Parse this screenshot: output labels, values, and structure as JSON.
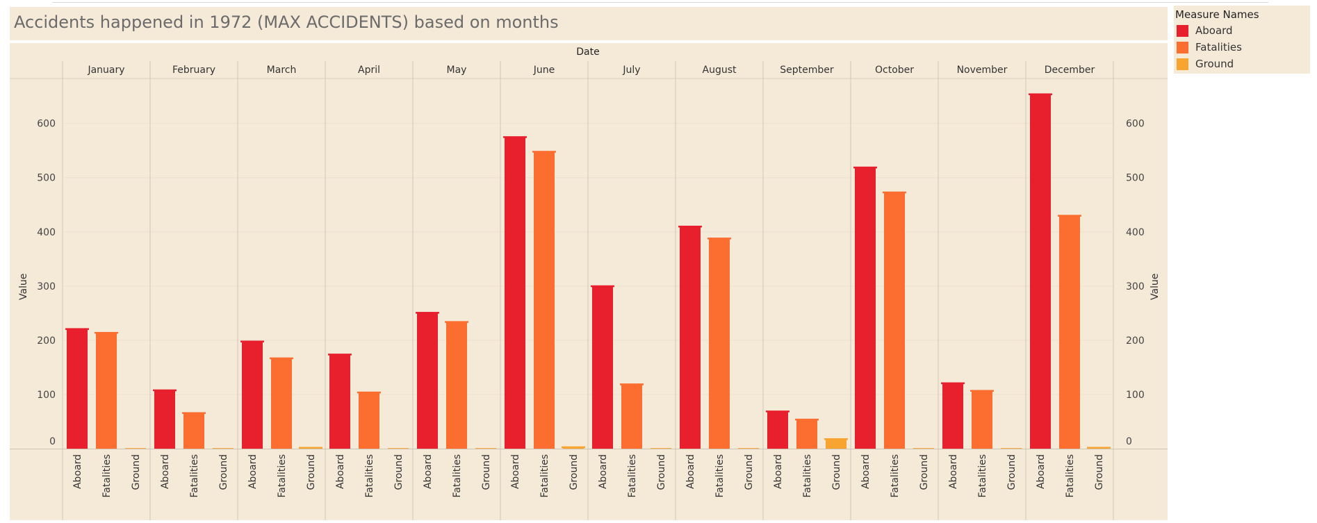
{
  "title": "Accidents happened in 1972 (MAX ACCIDENTS) based on months",
  "legend": {
    "title": "Measure Names",
    "items": [
      {
        "label": "Aboard",
        "color": "#e81f2d"
      },
      {
        "label": "Fatalities",
        "color": "#fc6d30"
      },
      {
        "label": "Ground",
        "color": "#f7a430"
      }
    ]
  },
  "chart_data": {
    "type": "bar",
    "column_header": "Date",
    "ylabel": "Value",
    "ylim": [
      0,
      680
    ],
    "yticks": [
      0,
      100,
      200,
      300,
      400,
      500,
      600
    ],
    "categories": [
      "January",
      "February",
      "March",
      "April",
      "May",
      "June",
      "July",
      "August",
      "September",
      "October",
      "November",
      "December"
    ],
    "measures": [
      "Aboard",
      "Fatalities",
      "Ground"
    ],
    "colors": [
      "#e81f2d",
      "#fc6d30",
      "#f7a430"
    ],
    "series": [
      {
        "name": "Aboard",
        "values": [
          221,
          108,
          198,
          174,
          251,
          575,
          300,
          410,
          69,
          519,
          121,
          654
        ]
      },
      {
        "name": "Fatalities",
        "values": [
          214,
          66,
          167,
          104,
          234,
          548,
          119,
          388,
          54,
          473,
          107,
          430
        ]
      },
      {
        "name": "Ground",
        "values": [
          0,
          0,
          1,
          0,
          0,
          3,
          0,
          0,
          18,
          0,
          0,
          2
        ]
      }
    ],
    "grid": true,
    "legend_position": "top-right"
  }
}
